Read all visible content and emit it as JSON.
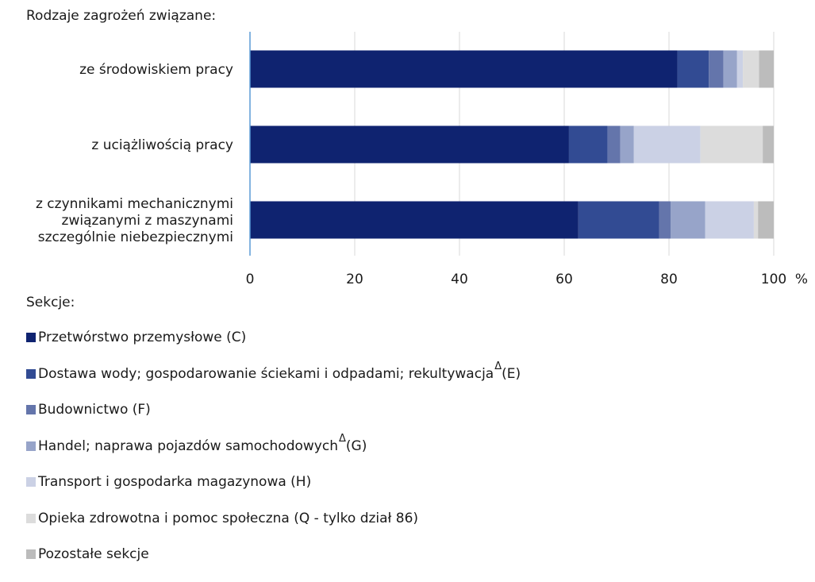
{
  "header_label": "Rodzaje zagrożeń związane:",
  "legend_title": "Sekcje:",
  "chart_data": {
    "type": "bar",
    "orientation": "horizontal",
    "stacked": true,
    "categories": [
      [
        "ze środowiskiem pracy"
      ],
      [
        "z uciążliwością pracy"
      ],
      [
        "z czynnikami mechanicznymi",
        "związanymi z maszynami",
        "szczególnie niebezpiecznymi"
      ]
    ],
    "series": [
      {
        "name": "Przetwórstwo przemysłowe (C)",
        "color": "#0f2370",
        "values": [
          81.6,
          60.9,
          62.7
        ]
      },
      {
        "name": "Dostawa wody; gospodarowanie ściekami i odpadami; rekultywacja",
        "sup": "Δ",
        "suffix": "(E)",
        "color": "#324b93",
        "values": [
          6.0,
          7.4,
          15.4
        ]
      },
      {
        "name": "Budownictwo (F)",
        "color": "#6475ab",
        "values": [
          2.8,
          2.4,
          2.2
        ]
      },
      {
        "name": "Handel; naprawa pojazdów samochodowych",
        "sup": "Δ",
        "suffix": "(G)",
        "color": "#97a4c9",
        "values": [
          2.6,
          2.6,
          6.6
        ]
      },
      {
        "name": "Transport i gospodarka magazynowa (H)",
        "color": "#cbd1e5",
        "values": [
          1.1,
          12.7,
          9.3
        ]
      },
      {
        "name": "Opieka zdrowotna i pomoc społeczna (Q - tylko dział 86)",
        "color": "#dcdcdc",
        "values": [
          3.1,
          11.9,
          0.8
        ]
      },
      {
        "name": "Pozostałe sekcje",
        "color": "#bcbcbc",
        "values": [
          2.8,
          2.1,
          3.0
        ]
      }
    ],
    "xlim": [
      0,
      100
    ],
    "xticks": [
      "0",
      "20",
      "40",
      "60",
      "80",
      "100"
    ],
    "xunit": "%",
    "grid": true,
    "legend_position": "bottom"
  }
}
